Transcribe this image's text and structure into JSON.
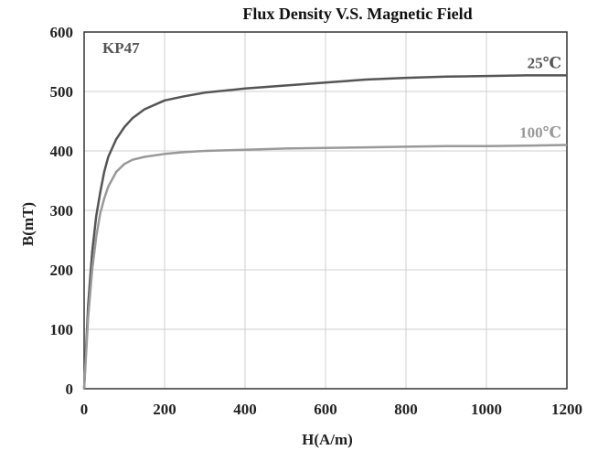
{
  "chart_data": {
    "type": "line",
    "title": "Flux Density V.S. Magnetic Field",
    "material": "KP47",
    "xlabel": "H(A/m)",
    "ylabel": "B(mT)",
    "xlim": [
      0,
      1200
    ],
    "ylim": [
      0,
      600
    ],
    "x_ticks": [
      "0",
      "200",
      "400",
      "600",
      "800",
      "1000",
      "1200"
    ],
    "y_ticks": [
      "0",
      "100",
      "200",
      "300",
      "400",
      "500",
      "600"
    ],
    "grid": true,
    "series": [
      {
        "name": "25℃",
        "color": "#555555",
        "x": [
          0,
          10,
          20,
          30,
          40,
          50,
          60,
          80,
          100,
          120,
          150,
          200,
          250,
          300,
          400,
          500,
          600,
          700,
          800,
          900,
          1000,
          1100,
          1200
        ],
        "y": [
          0,
          140,
          230,
          290,
          330,
          365,
          390,
          420,
          440,
          455,
          470,
          485,
          492,
          498,
          505,
          510,
          515,
          520,
          523,
          525,
          526,
          527,
          527
        ]
      },
      {
        "name": "100℃",
        "color": "#999999",
        "x": [
          0,
          10,
          20,
          30,
          40,
          50,
          60,
          80,
          100,
          120,
          150,
          200,
          250,
          300,
          400,
          500,
          600,
          700,
          800,
          900,
          1000,
          1100,
          1200
        ],
        "y": [
          0,
          120,
          200,
          255,
          295,
          320,
          340,
          365,
          378,
          385,
          390,
          395,
          398,
          400,
          402,
          404,
          405,
          406,
          407,
          408,
          408,
          409,
          410
        ]
      }
    ]
  }
}
